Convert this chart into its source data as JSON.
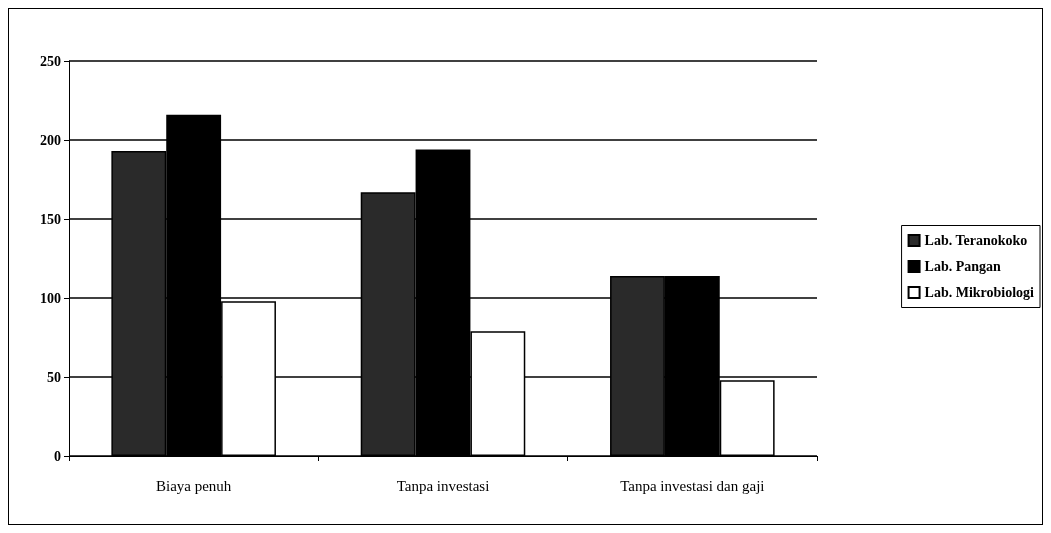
{
  "chart_data": {
    "type": "bar",
    "categories": [
      "Biaya penuh",
      "Tanpa investasi",
      "Tanpa investasi dan gaji"
    ],
    "series": [
      {
        "name": "Lab. Teranokoko",
        "color": "#2a2a2a",
        "values": [
          193,
          167,
          114
        ]
      },
      {
        "name": "Lab. Pangan",
        "color": "#000000",
        "values": [
          216,
          194,
          114
        ]
      },
      {
        "name": "Lab. Mikrobiologi",
        "color": "#ffffff",
        "values": [
          98,
          79,
          48
        ]
      }
    ],
    "ylim": [
      0,
      250
    ],
    "yticks": [
      0,
      50,
      100,
      150,
      200,
      250
    ],
    "grid": "y",
    "legend": "right"
  }
}
